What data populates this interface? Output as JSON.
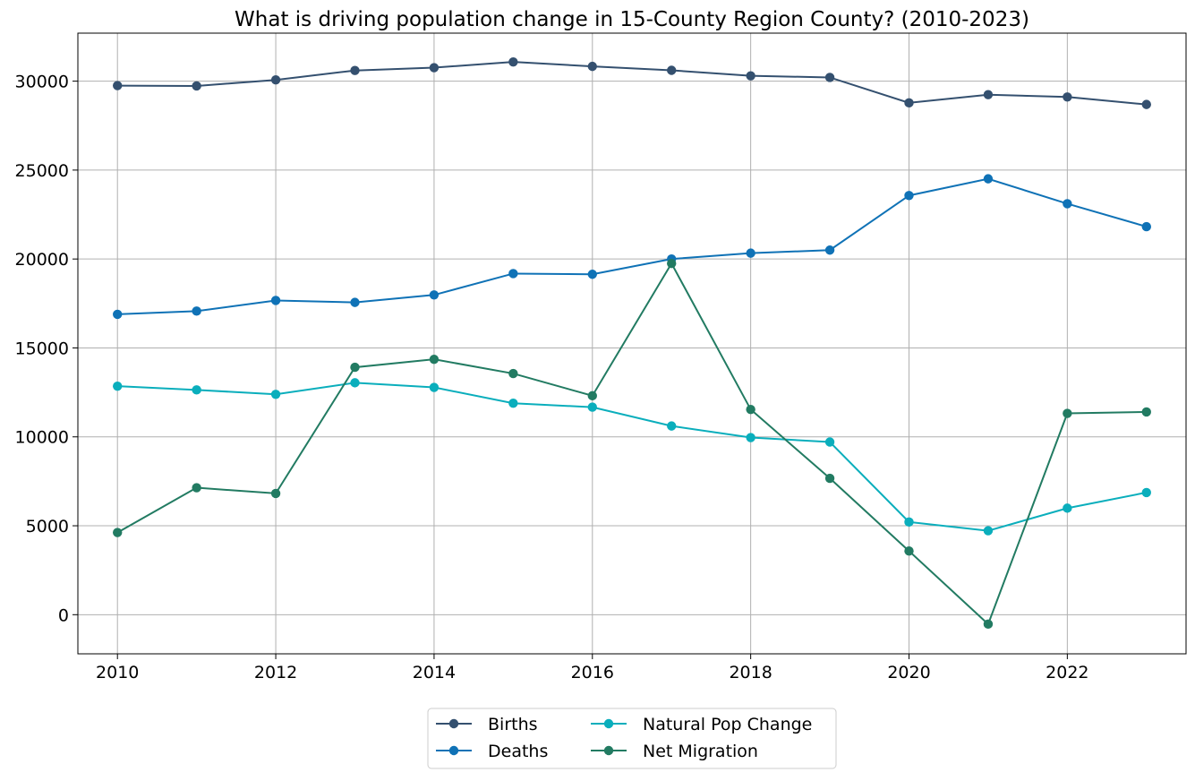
{
  "chart_data": {
    "type": "line",
    "title": "What is driving population change in 15-County Region County? (2010-2023)",
    "xlabel": "",
    "ylabel": "",
    "x": [
      2010,
      2011,
      2012,
      2013,
      2014,
      2015,
      2016,
      2017,
      2018,
      2019,
      2020,
      2021,
      2022,
      2023
    ],
    "xlim": [
      2009.5,
      2023.5
    ],
    "ylim": [
      -2200,
      32700
    ],
    "x_ticks": [
      2010,
      2012,
      2014,
      2016,
      2018,
      2020,
      2022
    ],
    "y_ticks": [
      0,
      5000,
      10000,
      15000,
      20000,
      25000,
      30000
    ],
    "x_tick_labels": [
      "2010",
      "2012",
      "2014",
      "2016",
      "2018",
      "2020",
      "2022"
    ],
    "y_tick_labels": [
      "0",
      "5000",
      "10000",
      "15000",
      "20000",
      "25000",
      "30000"
    ],
    "grid": true,
    "legend": {
      "placement": "bottom-center",
      "columns": 2
    },
    "series": [
      {
        "name": "Births",
        "color": "#34506f",
        "marker": "circle",
        "values": [
          29750,
          29730,
          30070,
          30600,
          30760,
          31080,
          30830,
          30610,
          30300,
          30210,
          28780,
          29240,
          29110,
          28690
        ]
      },
      {
        "name": "Deaths",
        "color": "#0f72b6",
        "marker": "circle",
        "values": [
          16890,
          17070,
          17670,
          17560,
          17980,
          19180,
          19140,
          20000,
          20330,
          20500,
          23570,
          24510,
          23110,
          21820
        ]
      },
      {
        "name": "Natural Pop Change",
        "color": "#0aaebc",
        "marker": "circle",
        "values": [
          12850,
          12640,
          12390,
          13040,
          12780,
          11890,
          11670,
          10610,
          9960,
          9710,
          5210,
          4720,
          5990,
          6870
        ]
      },
      {
        "name": "Net Migration",
        "color": "#227b62",
        "marker": "circle",
        "values": [
          4620,
          7140,
          6820,
          13910,
          14360,
          13560,
          12310,
          19750,
          11540,
          7670,
          3580,
          -530,
          11320,
          11400
        ]
      }
    ]
  }
}
